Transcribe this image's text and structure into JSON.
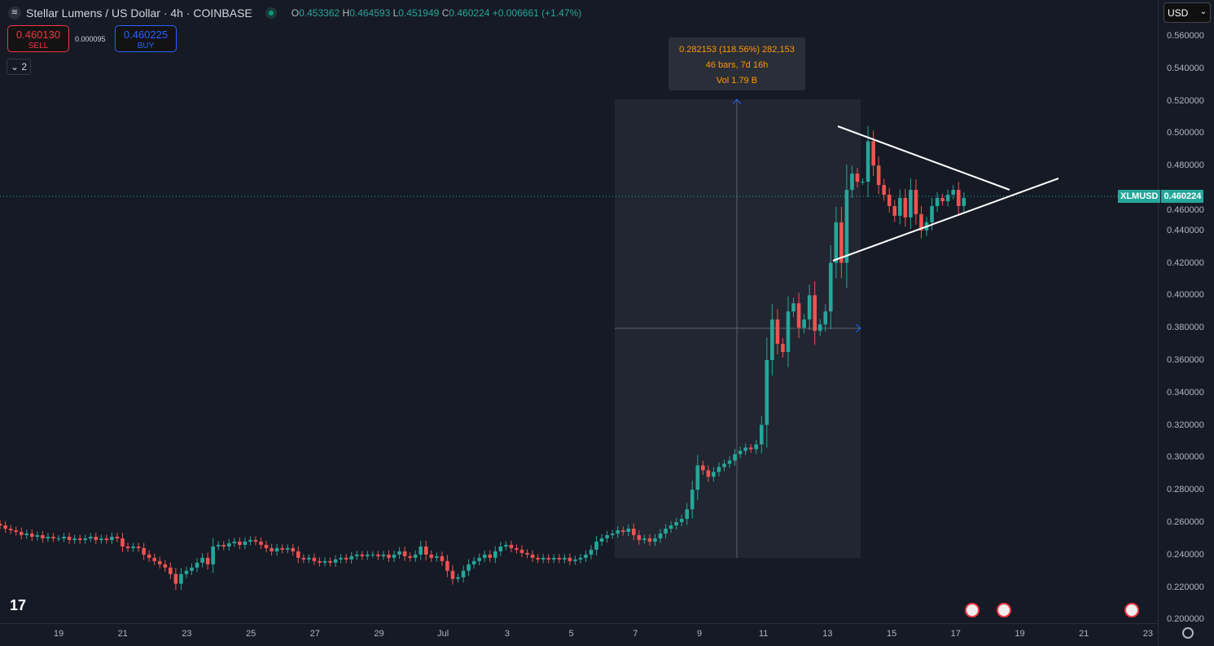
{
  "header": {
    "title": "Stellar Lumens / US Dollar · 4h · COINBASE",
    "open_label": "O",
    "open": "0.453362",
    "high_label": "H",
    "high": "0.464593",
    "low_label": "L",
    "low": "0.451949",
    "close_label": "C",
    "close": "0.460224",
    "change": "+0.006661 (+1.47%)"
  },
  "trade": {
    "sell_price": "0.460130",
    "sell_label": "SELL",
    "spread": "0.000095",
    "buy_price": "0.460225",
    "buy_label": "BUY"
  },
  "indicators_toggle": "2",
  "currency": "USD",
  "current_price": {
    "symbol": "XLMUSD",
    "value": "0.460224"
  },
  "measure": {
    "line1": "0.282153 (118.56%) 282,153",
    "line2": "46 bars, 7d 16h",
    "line3": "Vol 1.79 B"
  },
  "colors": {
    "up": "#26a69a",
    "down": "#ef5350",
    "bg": "#161a25"
  },
  "chart_data": {
    "type": "candlestick",
    "title": "Stellar Lumens / US Dollar · 4h · COINBASE",
    "ylim": [
      0.2,
      0.56
    ],
    "price_ticks": [
      "0.560000",
      "0.540000",
      "0.520000",
      "0.500000",
      "0.480000",
      "0.460000",
      "0.440000",
      "0.420000",
      "0.400000",
      "0.380000",
      "0.360000",
      "0.340000",
      "0.320000",
      "0.300000",
      "0.280000",
      "0.260000",
      "0.240000",
      "0.220000",
      "0.200000"
    ],
    "time_ticks": [
      "19",
      "21",
      "23",
      "25",
      "27",
      "29",
      "Jul",
      "3",
      "5",
      "7",
      "9",
      "11",
      "13",
      "15",
      "17",
      "19",
      "21",
      "23"
    ],
    "first_close": 0.259,
    "closes": [
      0.258,
      0.256,
      0.255,
      0.254,
      0.252,
      0.253,
      0.251,
      0.252,
      0.25,
      0.251,
      0.25,
      0.25,
      0.251,
      0.249,
      0.25,
      0.249,
      0.25,
      0.251,
      0.249,
      0.25,
      0.249,
      0.251,
      0.25,
      0.245,
      0.244,
      0.245,
      0.244,
      0.24,
      0.238,
      0.236,
      0.234,
      0.232,
      0.228,
      0.222,
      0.228,
      0.23,
      0.232,
      0.235,
      0.238,
      0.234,
      0.245,
      0.246,
      0.245,
      0.247,
      0.248,
      0.246,
      0.248,
      0.249,
      0.248,
      0.246,
      0.244,
      0.242,
      0.244,
      0.243,
      0.244,
      0.242,
      0.238,
      0.237,
      0.238,
      0.236,
      0.235,
      0.236,
      0.235,
      0.237,
      0.238,
      0.237,
      0.239,
      0.24,
      0.239,
      0.24,
      0.24,
      0.239,
      0.24,
      0.238,
      0.24,
      0.242,
      0.239,
      0.238,
      0.24,
      0.245,
      0.24,
      0.238,
      0.239,
      0.236,
      0.23,
      0.225,
      0.226,
      0.23,
      0.234,
      0.236,
      0.238,
      0.24,
      0.238,
      0.242,
      0.245,
      0.246,
      0.244,
      0.243,
      0.241,
      0.24,
      0.238,
      0.237,
      0.238,
      0.237,
      0.238,
      0.237,
      0.238,
      0.236,
      0.237,
      0.238,
      0.24,
      0.243,
      0.248,
      0.25,
      0.252,
      0.253,
      0.255,
      0.254,
      0.256,
      0.252,
      0.249,
      0.25,
      0.248,
      0.25,
      0.253,
      0.256,
      0.258,
      0.26,
      0.262,
      0.268,
      0.28,
      0.295,
      0.292,
      0.288,
      0.291,
      0.294,
      0.296,
      0.298,
      0.302,
      0.304,
      0.306,
      0.305,
      0.308,
      0.32,
      0.36,
      0.385,
      0.37,
      0.365,
      0.39,
      0.395,
      0.38,
      0.385,
      0.4,
      0.378,
      0.382,
      0.39,
      0.42,
      0.445,
      0.42,
      0.465,
      0.475,
      0.47,
      0.47,
      0.495,
      0.48,
      0.468,
      0.462,
      0.455,
      0.449,
      0.46,
      0.448,
      0.465,
      0.45,
      0.44,
      0.445,
      0.455,
      0.46,
      0.458,
      0.462,
      0.465,
      0.455,
      0.46
    ]
  }
}
